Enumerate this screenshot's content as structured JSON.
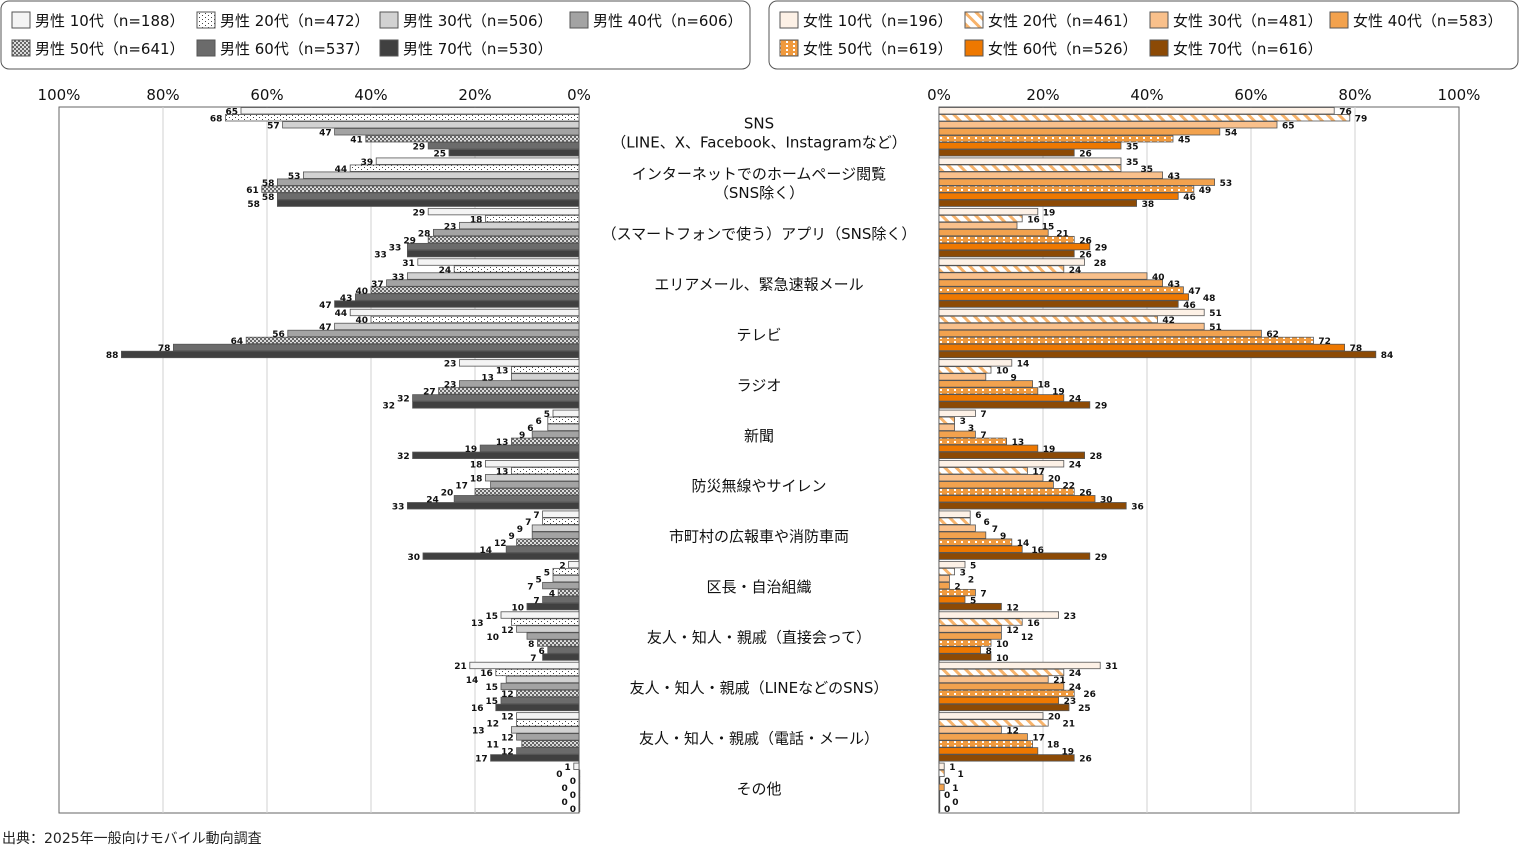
{
  "chart_data": {
    "type": "bar",
    "orientation": "horizontal",
    "categories": [
      [
        "SNS",
        "（LINE、X、Facebook、Instagramなど）"
      ],
      [
        "インターネットでのホームページ閲覧",
        "（SNS除く）"
      ],
      [
        "（スマートフォンで使う）アプリ（SNS除く）"
      ],
      [
        "エリアメール、緊急速報メール"
      ],
      [
        "テレビ"
      ],
      [
        "ラジオ"
      ],
      [
        "新聞"
      ],
      [
        "防災無線やサイレン"
      ],
      [
        "市町村の広報車や消防車両"
      ],
      [
        "区長・自治組織"
      ],
      [
        "友人・知人・親戚（直接会って）"
      ],
      [
        "友人・知人・親戚（LINEなどのSNS）"
      ],
      [
        "友人・知人・親戚（電話・メール）"
      ],
      [
        "その他"
      ]
    ],
    "panels": [
      {
        "name": "male",
        "direction": "left",
        "xlim": [
          0,
          100
        ],
        "ticks": [
          "0%",
          "20%",
          "40%",
          "60%",
          "80%",
          "100%"
        ],
        "series": [
          {
            "name": "男性 10代（n=188）",
            "color": "#f4f4f4",
            "pattern": "solid",
            "values": [
              65,
              39,
              29,
              31,
              44,
              23,
              5,
              18,
              7,
              2,
              15,
              21,
              12,
              1
            ]
          },
          {
            "name": "男性 20代（n=472）",
            "color": "#ffffff",
            "pattern": "dots",
            "values": [
              68,
              44,
              18,
              24,
              40,
              13,
              6,
              13,
              7,
              5,
              13,
              16,
              12,
              0
            ]
          },
          {
            "name": "男性 30代（n=506）",
            "color": "#d2d2d2",
            "pattern": "solid",
            "values": [
              57,
              53,
              23,
              33,
              47,
              13,
              6,
              18,
              9,
              5,
              12,
              14,
              13,
              0
            ]
          },
          {
            "name": "男性 40代（n=606）",
            "color": "#a3a3a3",
            "pattern": "solid",
            "values": [
              47,
              58,
              28,
              37,
              56,
              23,
              9,
              17,
              9,
              7,
              10,
              15,
              12,
              0
            ]
          },
          {
            "name": "男性 50代（n=641）",
            "color": "#8a8a8a",
            "pattern": "cross",
            "values": [
              41,
              61,
              29,
              40,
              64,
              27,
              13,
              20,
              12,
              4,
              8,
              12,
              11,
              0
            ]
          },
          {
            "name": "男性 60代（n=537）",
            "color": "#6b6b6b",
            "pattern": "solid",
            "values": [
              29,
              58,
              33,
              43,
              78,
              32,
              19,
              24,
              14,
              7,
              6,
              15,
              12,
              0
            ]
          },
          {
            "name": "男性 70代（n=530）",
            "color": "#404040",
            "pattern": "solid",
            "values": [
              25,
              58,
              33,
              47,
              88,
              32,
              32,
              33,
              30,
              10,
              7,
              16,
              17,
              0
            ]
          }
        ]
      },
      {
        "name": "female",
        "direction": "right",
        "xlim": [
          0,
          100
        ],
        "ticks": [
          "0%",
          "20%",
          "40%",
          "60%",
          "80%",
          "100%"
        ],
        "series": [
          {
            "name": "女性 10代（n=196）",
            "color": "#fdf1e6",
            "pattern": "solid",
            "values": [
              76,
              35,
              19,
              28,
              51,
              14,
              7,
              24,
              6,
              5,
              23,
              31,
              20,
              1
            ]
          },
          {
            "name": "女性 20代（n=461）",
            "color": "#f8c48f",
            "pattern": "stripes",
            "values": [
              79,
              35,
              16,
              24,
              42,
              10,
              3,
              17,
              6,
              3,
              16,
              24,
              21,
              1
            ]
          },
          {
            "name": "女性 30代（n=481）",
            "color": "#f9c08b",
            "pattern": "solid",
            "values": [
              65,
              43,
              15,
              40,
              51,
              9,
              3,
              20,
              7,
              2,
              12,
              21,
              12,
              0
            ]
          },
          {
            "name": "女性 40代（n=583）",
            "color": "#f2a24e",
            "pattern": "solid",
            "values": [
              54,
              53,
              21,
              43,
              62,
              18,
              7,
              22,
              9,
              2,
              12,
              24,
              17,
              1
            ]
          },
          {
            "name": "女性 50代（n=619）",
            "color": "#f09a3e",
            "pattern": "dots",
            "values": [
              45,
              49,
              26,
              47,
              72,
              19,
              13,
              26,
              14,
              7,
              10,
              26,
              18,
              0
            ]
          },
          {
            "name": "女性 60代（n=526）",
            "color": "#ee7800",
            "pattern": "solid",
            "values": [
              35,
              46,
              29,
              48,
              78,
              24,
              19,
              30,
              16,
              5,
              8,
              23,
              19,
              0
            ]
          },
          {
            "name": "女性 70代（n=616）",
            "color": "#8c4a05",
            "pattern": "solid",
            "values": [
              26,
              38,
              26,
              46,
              84,
              29,
              28,
              36,
              29,
              12,
              10,
              25,
              26,
              0
            ]
          }
        ]
      }
    ],
    "grid": true,
    "legend": "top",
    "source": "出典：2025年一般向けモバイル動向調査"
  }
}
